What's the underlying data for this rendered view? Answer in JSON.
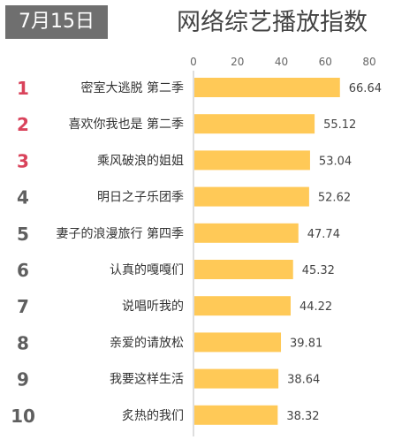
{
  "date_badge": "7月15日",
  "chart_data": {
    "type": "bar",
    "orientation": "horizontal",
    "title": "网络综艺播放指数",
    "ranks": [
      "1",
      "2",
      "3",
      "4",
      "5",
      "6",
      "7",
      "8",
      "9",
      "10"
    ],
    "categories": [
      "密室大逃脱 第二季",
      "喜欢你我也是 第二季",
      "乘风破浪的姐姐",
      "明日之子乐团季",
      "妻子的浪漫旅行 第四季",
      "认真的嘎嘎们",
      "说唱听我的",
      "亲爱的请放松",
      "我要这样生活",
      "炙热的我们"
    ],
    "values": [
      66.64,
      55.12,
      53.04,
      52.62,
      47.74,
      45.32,
      44.22,
      39.81,
      38.64,
      38.32
    ],
    "value_labels": [
      "66.64",
      "55.12",
      "53.04",
      "52.62",
      "47.74",
      "45.32",
      "44.22",
      "39.81",
      "38.64",
      "38.32"
    ],
    "xlim": [
      0,
      80
    ],
    "xticks": [
      "0",
      "20",
      "40",
      "60",
      "80"
    ],
    "grid": false,
    "bar_color": "#ffc957",
    "rank_colors": {
      "top3": "#d9435b",
      "rest": "#5f5f5f"
    }
  }
}
